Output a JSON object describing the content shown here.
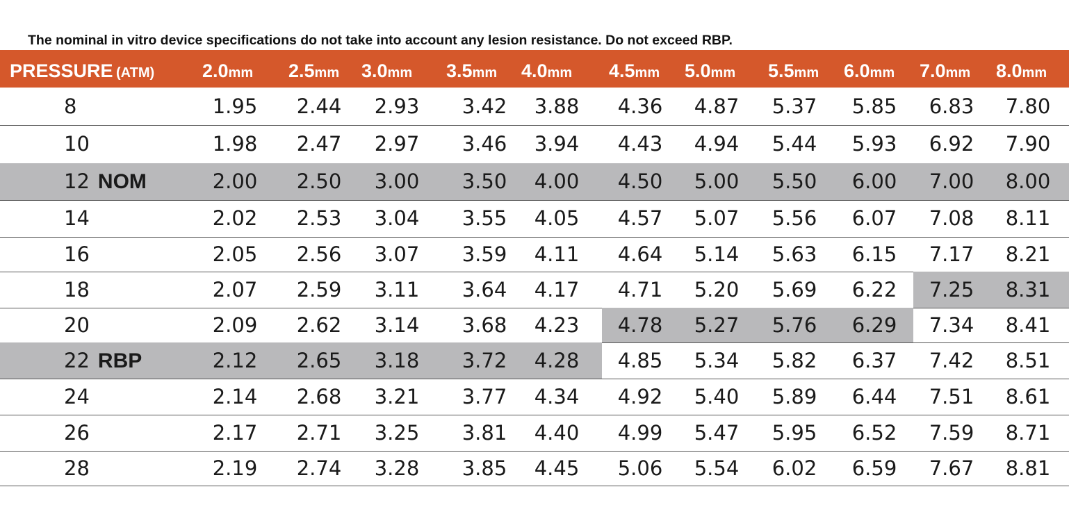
{
  "note": "The nominal in vitro device specifications do not take into account any lesion resistance. Do not exceed RBP.",
  "header": {
    "pressure_label": "PRESSURE",
    "pressure_unit": "(ATM)",
    "unit": "mm",
    "columns": [
      "2.0",
      "2.5",
      "3.0",
      "3.5",
      "4.0",
      "4.5",
      "5.0",
      "5.5",
      "6.0",
      "7.0",
      "8.0"
    ]
  },
  "rows": [
    {
      "pressure": "8",
      "tag": "",
      "values": [
        "1.95",
        "2.44",
        "2.93",
        "3.42",
        "3.88",
        "4.36",
        "4.87",
        "5.37",
        "5.85",
        "6.83",
        "7.80"
      ],
      "shaded": []
    },
    {
      "pressure": "10",
      "tag": "",
      "values": [
        "1.98",
        "2.47",
        "2.97",
        "3.46",
        "3.94",
        "4.43",
        "4.94",
        "5.44",
        "5.93",
        "6.92",
        "7.90"
      ],
      "shaded": []
    },
    {
      "pressure": "12",
      "tag": "NOM",
      "values": [
        "2.00",
        "2.50",
        "3.00",
        "3.50",
        "4.00",
        "4.50",
        "5.00",
        "5.50",
        "6.00",
        "7.00",
        "8.00"
      ],
      "shaded": [
        "all"
      ]
    },
    {
      "pressure": "14",
      "tag": "",
      "values": [
        "2.02",
        "2.53",
        "3.04",
        "3.55",
        "4.05",
        "4.57",
        "5.07",
        "5.56",
        "6.07",
        "7.08",
        "8.11"
      ],
      "shaded": []
    },
    {
      "pressure": "16",
      "tag": "",
      "values": [
        "2.05",
        "2.56",
        "3.07",
        "3.59",
        "4.11",
        "4.64",
        "5.14",
        "5.63",
        "6.15",
        "7.17",
        "8.21"
      ],
      "shaded": []
    },
    {
      "pressure": "18",
      "tag": "",
      "values": [
        "2.07",
        "2.59",
        "3.11",
        "3.64",
        "4.17",
        "4.71",
        "5.20",
        "5.69",
        "6.22",
        "7.25",
        "8.31"
      ],
      "shaded": [
        "7.0",
        "8.0"
      ]
    },
    {
      "pressure": "20",
      "tag": "",
      "values": [
        "2.09",
        "2.62",
        "3.14",
        "3.68",
        "4.23",
        "4.78",
        "5.27",
        "5.76",
        "6.29",
        "7.34",
        "8.41"
      ],
      "shaded": [
        "4.5",
        "5.0",
        "5.5",
        "6.0"
      ]
    },
    {
      "pressure": "22",
      "tag": "RBP",
      "values": [
        "2.12",
        "2.65",
        "3.18",
        "3.72",
        "4.28",
        "4.85",
        "5.34",
        "5.82",
        "6.37",
        "7.42",
        "8.51"
      ],
      "shaded": [
        "pressure",
        "2.0",
        "2.5",
        "3.0",
        "3.5",
        "4.0"
      ]
    },
    {
      "pressure": "24",
      "tag": "",
      "values": [
        "2.14",
        "2.68",
        "3.21",
        "3.77",
        "4.34",
        "4.92",
        "5.40",
        "5.89",
        "6.44",
        "7.51",
        "8.61"
      ],
      "shaded": []
    },
    {
      "pressure": "26",
      "tag": "",
      "values": [
        "2.17",
        "2.71",
        "3.25",
        "3.81",
        "4.40",
        "4.99",
        "5.47",
        "5.95",
        "6.52",
        "7.59",
        "8.71"
      ],
      "shaded": []
    },
    {
      "pressure": "28",
      "tag": "",
      "values": [
        "2.19",
        "2.74",
        "3.28",
        "3.85",
        "4.45",
        "5.06",
        "5.54",
        "6.02",
        "6.59",
        "7.67",
        "8.81"
      ],
      "shaded": []
    }
  ],
  "colors": {
    "header_bg": "#d5582b",
    "header_text": "#ffffff",
    "shade": "#b9b9bb",
    "rule": "#555555"
  }
}
